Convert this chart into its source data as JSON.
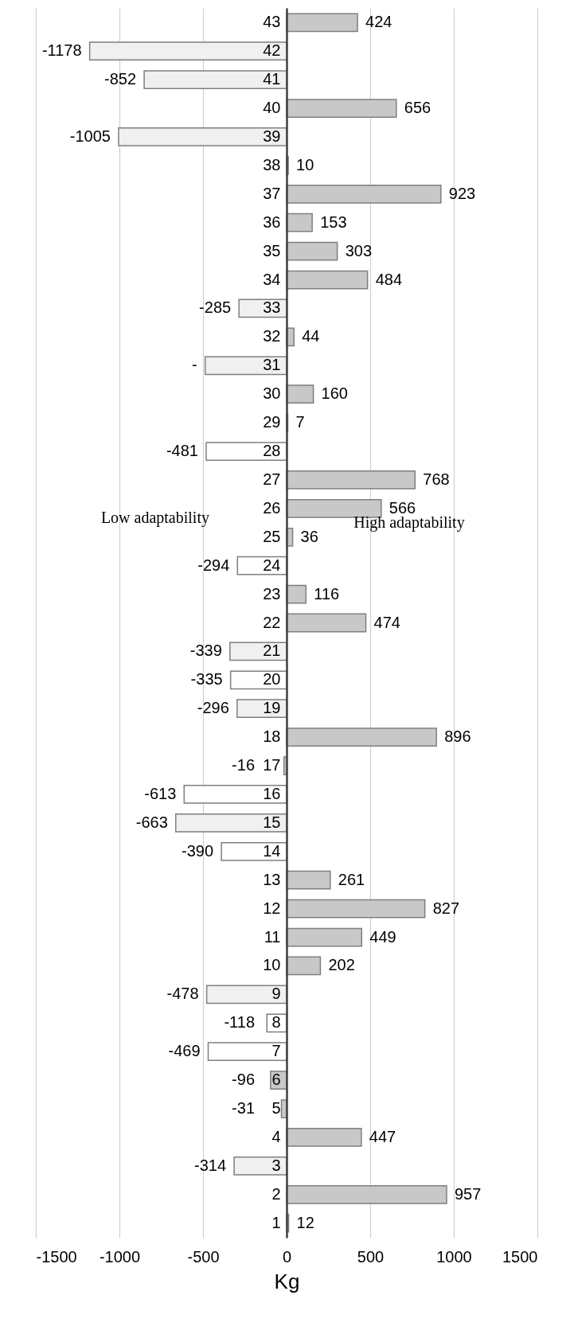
{
  "chart_data": {
    "type": "bar",
    "orientation": "horizontal",
    "xlabel": "Kg",
    "categories": [
      "43",
      "42",
      "41",
      "40",
      "39",
      "38",
      "37",
      "36",
      "35",
      "34",
      "33",
      "32",
      "31",
      "30",
      "29",
      "28",
      "27",
      "26",
      "25",
      "24",
      "23",
      "22",
      "21",
      "20",
      "19",
      "18",
      "17",
      "16",
      "15",
      "14",
      "13",
      "12",
      "11",
      "10",
      "9",
      "8",
      "7",
      "6",
      "5",
      "4",
      "3",
      "2",
      "1"
    ],
    "values": [
      424,
      -1178,
      -852,
      656,
      -1005,
      10,
      923,
      153,
      303,
      484,
      -285,
      44,
      -487,
      160,
      7,
      -481,
      768,
      566,
      36,
      -294,
      116,
      474,
      -339,
      -335,
      -296,
      896,
      -16,
      -613,
      -663,
      -390,
      261,
      827,
      449,
      202,
      -478,
      -118,
      -469,
      -96,
      -31,
      447,
      -314,
      957,
      12
    ],
    "value_labels": [
      "424",
      "-1178",
      "-852",
      "656",
      "-1005",
      "10",
      "923",
      "153",
      "303",
      "484",
      "-285",
      "44",
      "-",
      "160",
      "7",
      "-481",
      "768",
      "566",
      "36",
      "-294",
      "116",
      "474",
      "-339",
      "-335",
      "-296",
      "896",
      "-16",
      "-613",
      "-663",
      "-390",
      "261",
      "827",
      "449",
      "202",
      "-478",
      "-118",
      "-469",
      "-96",
      "-31",
      "447",
      "-314",
      "957",
      "12"
    ],
    "colors": [
      "#c8c8c8",
      "#f0f0f0",
      "#f0f0f0",
      "#c8c8c8",
      "#f0f0f0",
      "#c8c8c8",
      "#c8c8c8",
      "#c8c8c8",
      "#c8c8c8",
      "#c8c8c8",
      "#f0f0f0",
      "#c8c8c8",
      "#f0f0f0",
      "#c8c8c8",
      "#c8c8c8",
      "#ffffff",
      "#c8c8c8",
      "#c8c8c8",
      "#c8c8c8",
      "#ffffff",
      "#c8c8c8",
      "#c8c8c8",
      "#f0f0f0",
      "#ffffff",
      "#f0f0f0",
      "#c8c8c8",
      "#c8c8c8",
      "#ffffff",
      "#f0f0f0",
      "#ffffff",
      "#c8c8c8",
      "#c8c8c8",
      "#c8c8c8",
      "#c8c8c8",
      "#f0f0f0",
      "#ffffff",
      "#ffffff",
      "#c8c8c8",
      "#c8c8c8",
      "#c8c8c8",
      "#f0f0f0",
      "#c8c8c8",
      "#c8c8c8"
    ],
    "xlim": [
      -1500,
      1500
    ],
    "xticks": [
      -1500,
      -1000,
      -500,
      0,
      500,
      1000,
      1500
    ],
    "grid": "x",
    "annotations": [
      "Low adaptability",
      "High adaptability"
    ]
  }
}
